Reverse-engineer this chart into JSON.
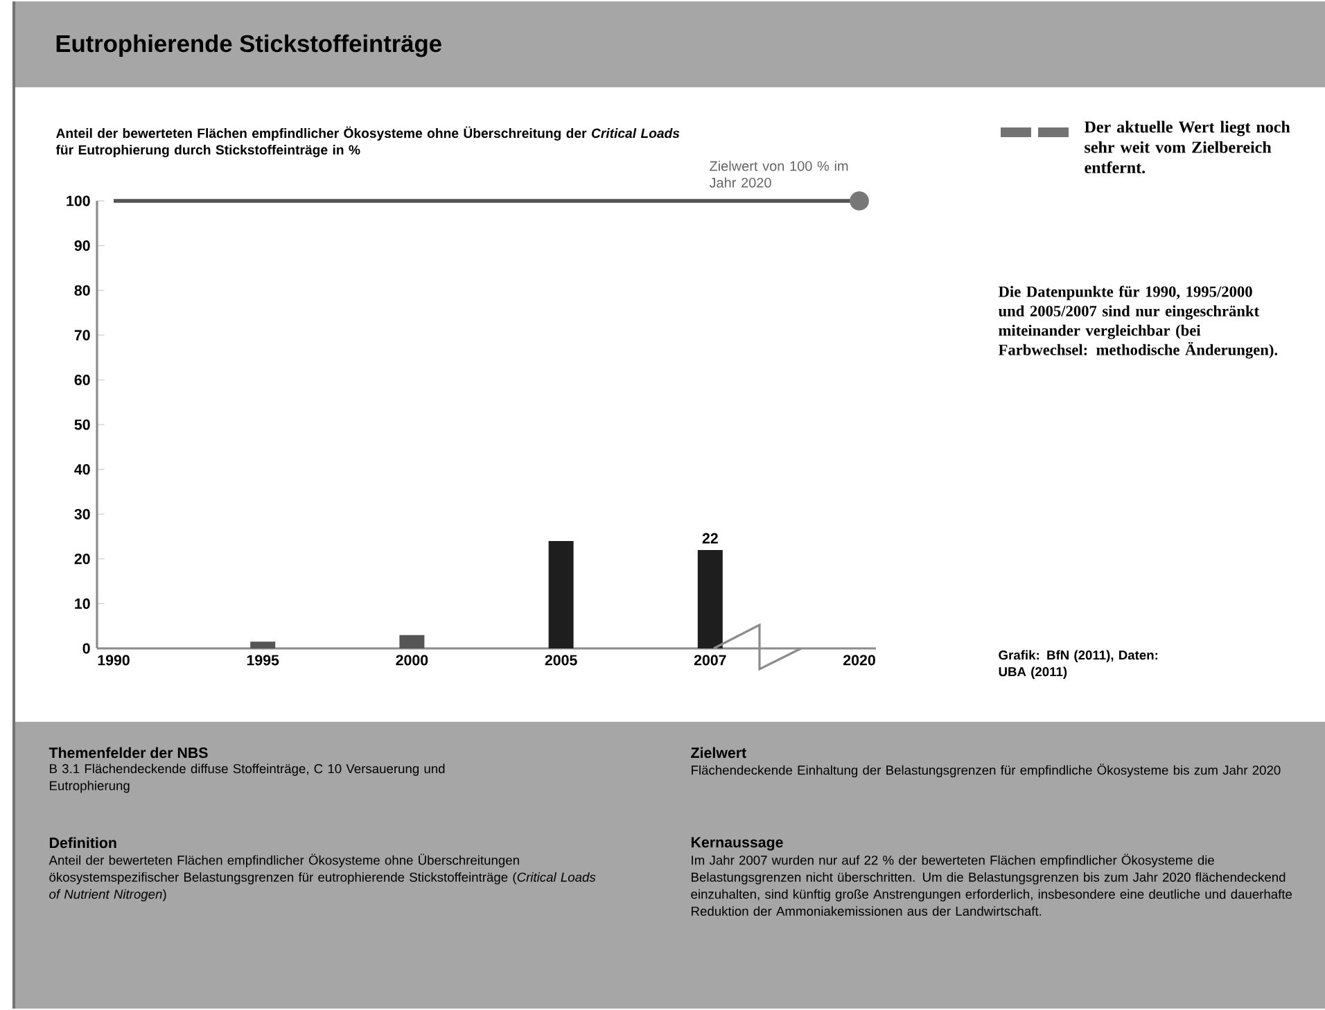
{
  "chart_data": {
    "type": "bar",
    "title": "Eutrophierende Stickstoffeinträge",
    "subtitle": "Anteil der bewerteten Flächen empfindlicher Ökosysteme ohne Überschreitung der *Critical Loads* für Eutrophierung durch Stickstoffeinträge in %",
    "categories": [
      "1990",
      "1995",
      "2000",
      "2005",
      "2007",
      "2020"
    ],
    "series": [
      {
        "type": "bar",
        "values": [
          null,
          1.5,
          3,
          24,
          22,
          null
        ],
        "colors": [
          "#555555",
          "#555555",
          "#555555",
          "#1e1e1e",
          "#1e1e1e",
          "#555555"
        ],
        "value_labels": [
          null,
          null,
          null,
          null,
          "22",
          null
        ]
      },
      {
        "type": "scatter",
        "values": [
          null,
          null,
          null,
          null,
          null,
          100
        ],
        "color": "#777777"
      }
    ],
    "ref_lines": [
      {
        "axis": "y",
        "value": 100,
        "label": "Zielwert von 100 % im Jahr 2020",
        "color": "#555555"
      }
    ],
    "ylim": [
      0,
      100
    ],
    "yticks": [
      0,
      10,
      20,
      30,
      40,
      50,
      60,
      70,
      80,
      90,
      100
    ],
    "grid": false,
    "marker": "circle",
    "annotations": [
      "Der aktuelle Wert liegt noch sehr weit vom Zielbereich entfernt.",
      "Die Datenpunkte für 1990, 1995/2000 und 2005/2007 sind nur eingeschränkt miteinander vergleichbar (bei Farbwechsel: methodische Änderungen).",
      "Grafik: BfN (2011), Daten: UBA (2011)",
      "Themenfelder der NBS",
      "B 3.1 Flächendeckende diffuse Stoffeinträge, C 10 Versauerung und Eutrophierung",
      "Definition",
      "Anteil der bewerteten Flächen empfindlicher Ökosysteme ohne Überschreitungen ökosystemspezifischer Belastungsgrenzen für eutrophierende Stickstoffeinträge (*Critical Loads of Nutrient Nitrogen*)",
      "Zielwert",
      "Flächendeckende Einhaltung der Belastungsgrenzen für empfindliche Ökosysteme bis zum Jahr 2020",
      "Kernaussage",
      "Im Jahr 2007 wurden nur auf 22 % der bewerteten Flächen empfindlicher Ökosysteme die Belastungsgrenzen nicht überschritten. Um die Belastungsgrenzen bis zum Jahr 2020 flächendeckend einzuhalten, sind künftig große Anstrengungen erforderlich, insbesondere eine deutliche und dauerhafte Reduktion der Ammoniakemissionen aus der Landwirtschaft."
    ]
  }
}
